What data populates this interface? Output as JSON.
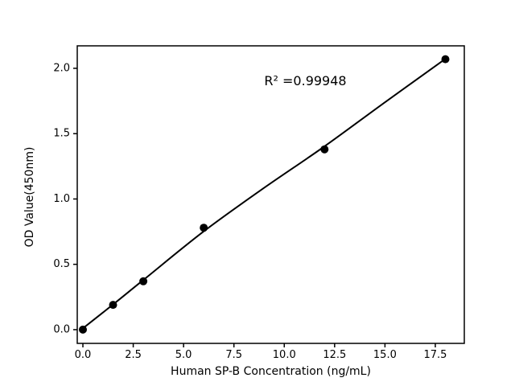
{
  "figure": {
    "background": "#ffffff",
    "foreground": "#000000"
  },
  "chart_data": {
    "type": "scatter",
    "title": "",
    "xlabel": "Human SP-B Concentration (ng/mL)",
    "ylabel": "OD Value(450nm)",
    "xlim": [
      -0.28,
      18.94
    ],
    "ylim": [
      -0.105,
      2.172
    ],
    "x_ticks": [
      0.0,
      2.5,
      5.0,
      7.5,
      10.0,
      12.5,
      15.0,
      17.5
    ],
    "x_tick_labels": [
      "0.0",
      "2.5",
      "5.0",
      "7.5",
      "10.0",
      "12.5",
      "15.0",
      "17.5"
    ],
    "y_ticks": [
      0.0,
      0.5,
      1.0,
      1.5,
      2.0
    ],
    "y_tick_labels": [
      "0.0",
      "0.5",
      "1.0",
      "1.5",
      "2.0"
    ],
    "grid": false,
    "legend": false,
    "marker_color": "#000000",
    "marker_radius": 5,
    "line_color": "#000000",
    "line_width": 2,
    "points": {
      "x": [
        0,
        1.5,
        3,
        6,
        12,
        18
      ],
      "y": [
        0.0,
        0.19,
        0.37,
        0.78,
        1.38,
        2.07
      ]
    },
    "fit_line": {
      "x": [
        0,
        1.5,
        3,
        6,
        9,
        12,
        15,
        18
      ],
      "y": [
        0.01,
        0.193,
        0.38,
        0.752,
        1.085,
        1.403,
        1.74,
        2.072
      ]
    },
    "annotation": {
      "text": "R² =0.99948",
      "x": 11.05,
      "y": 1.905
    }
  }
}
